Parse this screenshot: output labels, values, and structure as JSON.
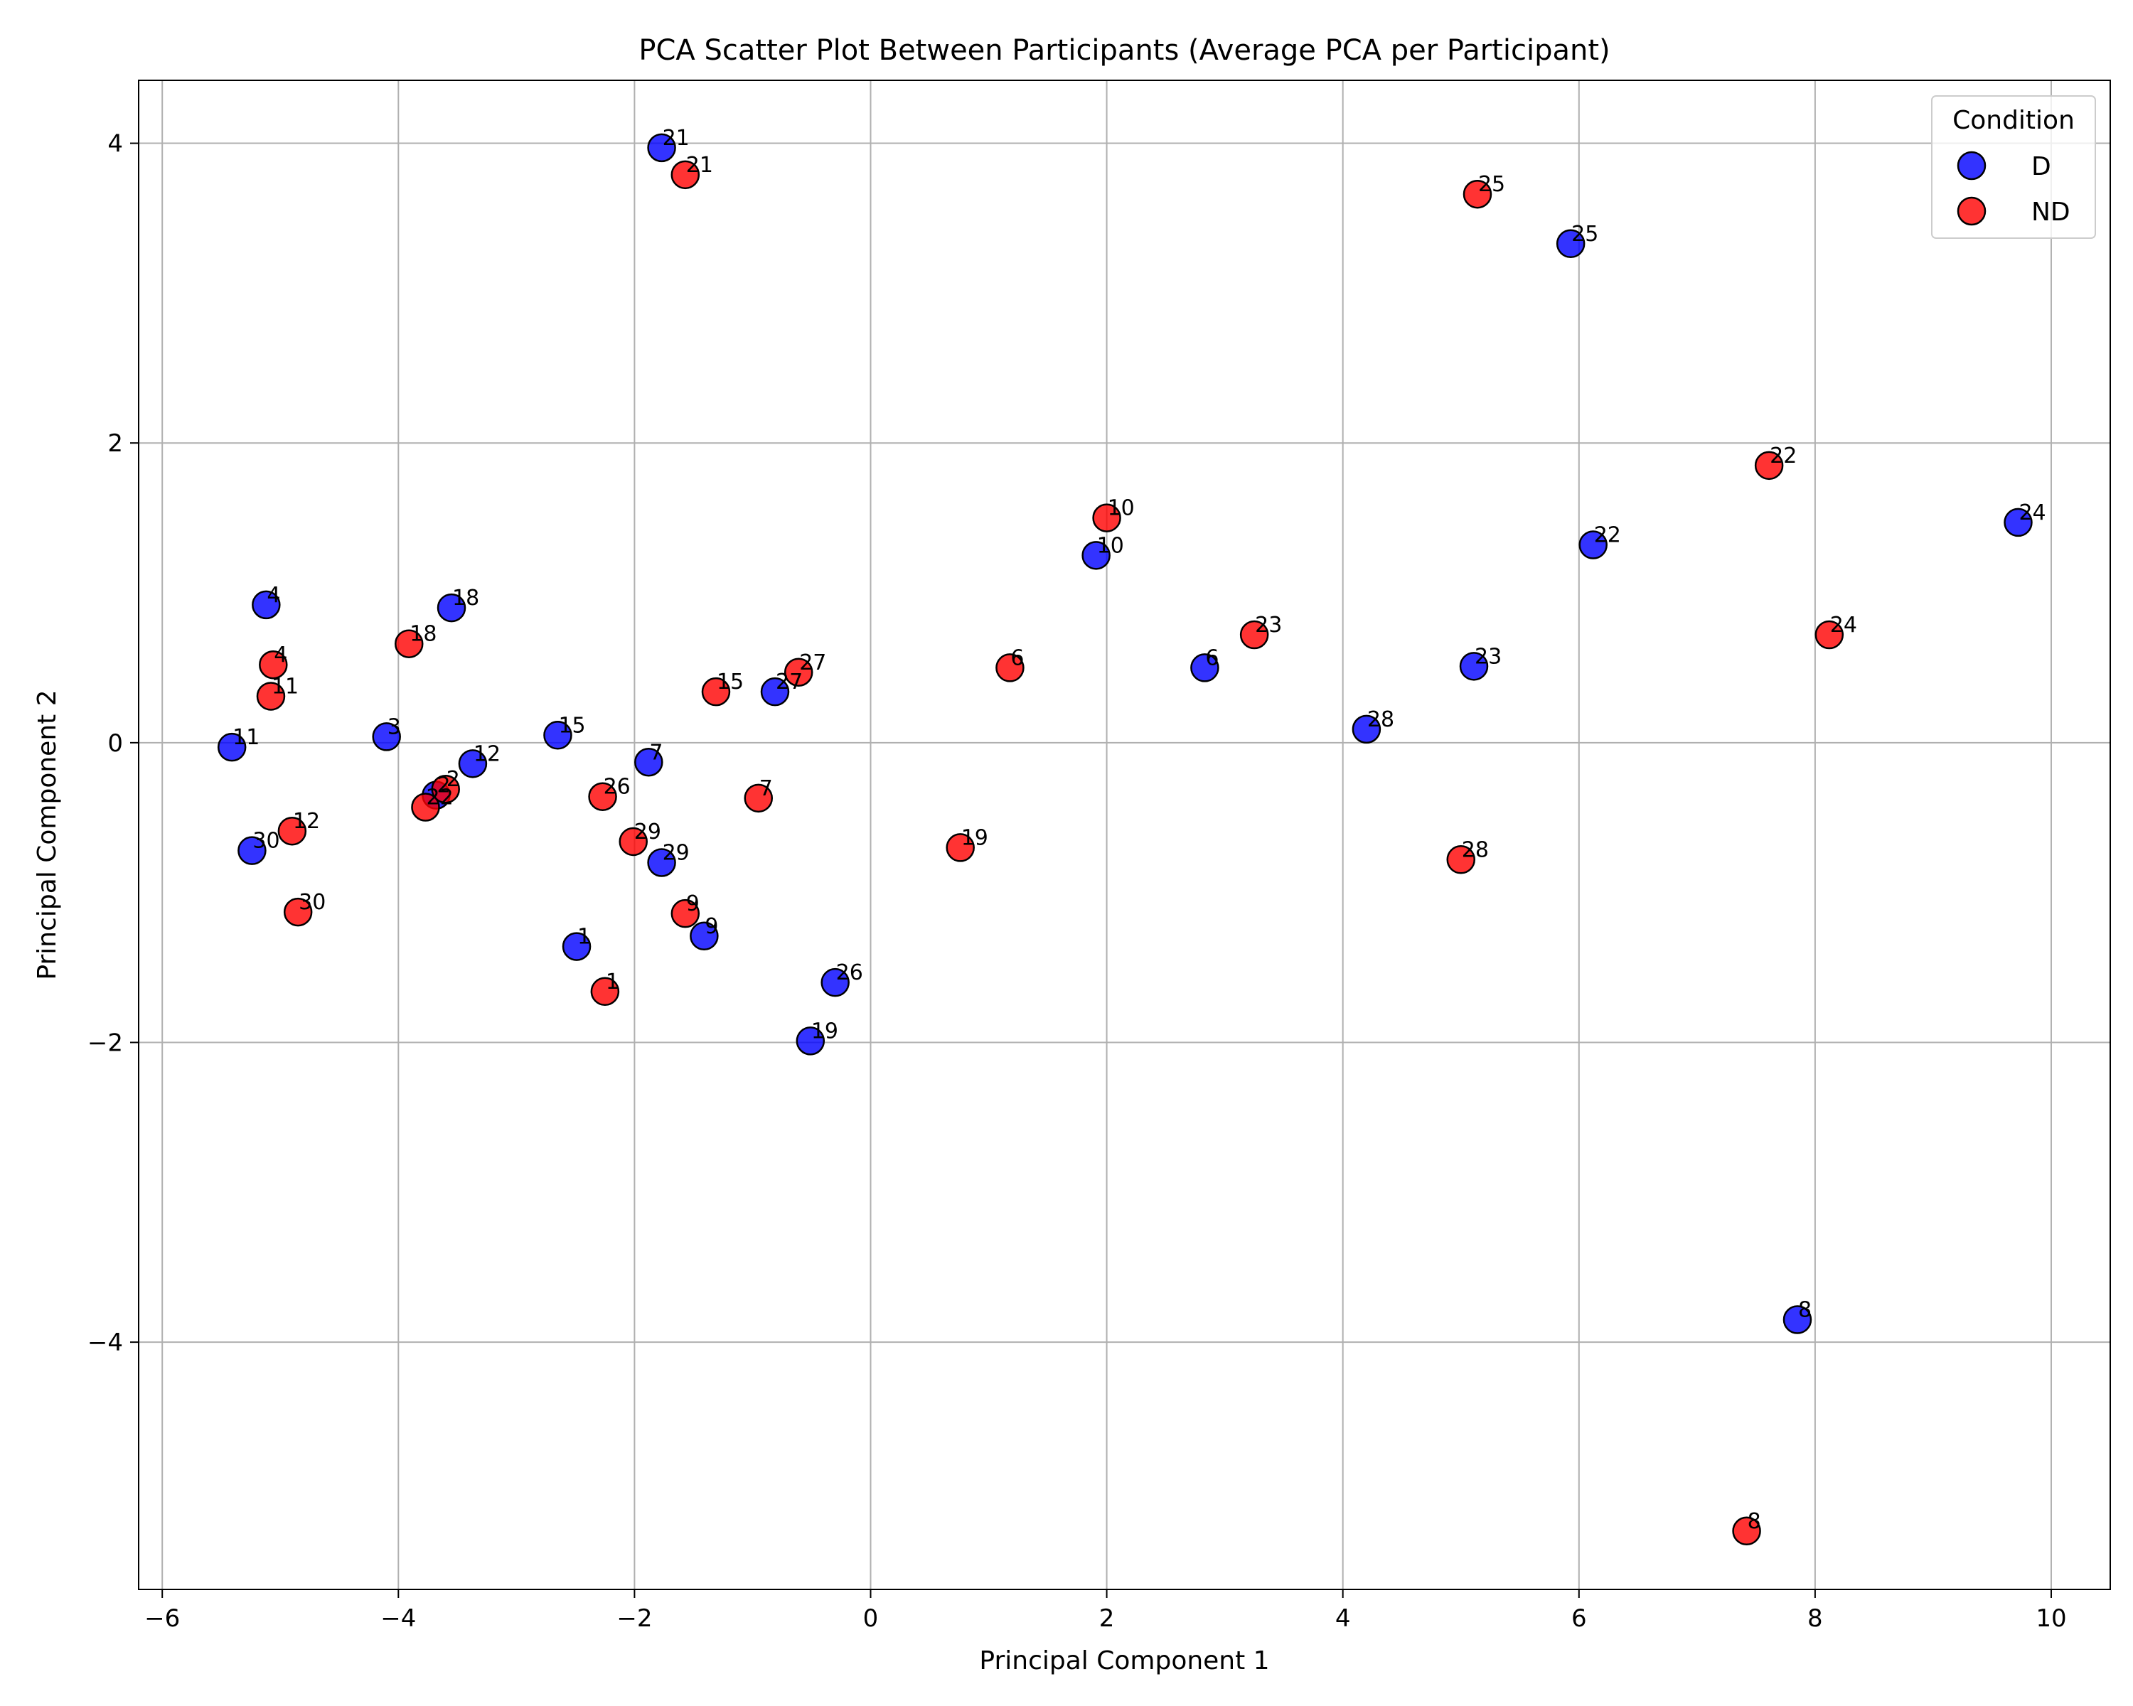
{
  "chart_data": {
    "type": "scatter",
    "title": "PCA Scatter Plot Between Participants (Average PCA per Participant)",
    "xlabel": "Principal Component 1",
    "ylabel": "Principal Component 2",
    "xlim": [
      -6.2,
      10.5
    ],
    "ylim": [
      -5.65,
      4.42
    ],
    "xticks": [
      -6,
      -4,
      -2,
      0,
      2,
      4,
      6,
      8,
      10
    ],
    "xtick_labels": [
      "−6",
      "−4",
      "−2",
      "0",
      "2",
      "4",
      "6",
      "8",
      "10"
    ],
    "yticks": [
      -4,
      -2,
      0,
      2,
      4
    ],
    "ytick_labels": [
      "−4",
      "−2",
      "0",
      "2",
      "4"
    ],
    "grid": true,
    "legend": {
      "title": "Condition",
      "placement": "top-right"
    },
    "series": [
      {
        "name": "D",
        "color": "#0000ff",
        "points": [
          {
            "label": "21",
            "x": -1.77,
            "y": 3.97
          },
          {
            "label": "25",
            "x": 5.93,
            "y": 3.33
          },
          {
            "label": "24",
            "x": 9.72,
            "y": 1.47
          },
          {
            "label": "22",
            "x": 6.12,
            "y": 1.32
          },
          {
            "label": "10",
            "x": 1.91,
            "y": 1.25
          },
          {
            "label": "4",
            "x": -5.12,
            "y": 0.92
          },
          {
            "label": "18",
            "x": -3.55,
            "y": 0.9
          },
          {
            "label": "6",
            "x": 2.83,
            "y": 0.5
          },
          {
            "label": "23",
            "x": 5.11,
            "y": 0.51
          },
          {
            "label": "27",
            "x": -0.81,
            "y": 0.34
          },
          {
            "label": "28",
            "x": 4.2,
            "y": 0.09
          },
          {
            "label": "3",
            "x": -4.1,
            "y": 0.04
          },
          {
            "label": "15",
            "x": -2.65,
            "y": 0.05
          },
          {
            "label": "11",
            "x": -5.41,
            "y": -0.03
          },
          {
            "label": "7",
            "x": -1.88,
            "y": -0.13
          },
          {
            "label": "12",
            "x": -3.37,
            "y": -0.14
          },
          {
            "label": "2",
            "x": -3.68,
            "y": -0.35
          },
          {
            "label": "30",
            "x": -5.24,
            "y": -0.72
          },
          {
            "label": "29",
            "x": -1.77,
            "y": -0.8
          },
          {
            "label": "9",
            "x": -1.41,
            "y": -1.29
          },
          {
            "label": "1",
            "x": -2.49,
            "y": -1.36
          },
          {
            "label": "26",
            "x": -0.3,
            "y": -1.6
          },
          {
            "label": "19",
            "x": -0.51,
            "y": -1.99
          },
          {
            "label": "8",
            "x": 7.85,
            "y": -3.85
          }
        ]
      },
      {
        "name": "ND",
        "color": "#ff0000",
        "points": [
          {
            "label": "21",
            "x": -1.57,
            "y": 3.79
          },
          {
            "label": "25",
            "x": 5.14,
            "y": 3.66
          },
          {
            "label": "22",
            "x": 7.61,
            "y": 1.85
          },
          {
            "label": "10",
            "x": 2.0,
            "y": 1.5
          },
          {
            "label": "24",
            "x": 8.12,
            "y": 0.72
          },
          {
            "label": "23",
            "x": 3.25,
            "y": 0.72
          },
          {
            "label": "18",
            "x": -3.91,
            "y": 0.66
          },
          {
            "label": "4",
            "x": -5.06,
            "y": 0.52
          },
          {
            "label": "6",
            "x": 1.18,
            "y": 0.5
          },
          {
            "label": "27",
            "x": -0.61,
            "y": 0.47
          },
          {
            "label": "15",
            "x": -1.31,
            "y": 0.34
          },
          {
            "label": "11",
            "x": -5.08,
            "y": 0.31
          },
          {
            "label": "2",
            "x": -3.6,
            "y": -0.31
          },
          {
            "label": "26",
            "x": -2.27,
            "y": -0.36
          },
          {
            "label": "7",
            "x": -0.95,
            "y": -0.37
          },
          {
            "label": "22",
            "x": -3.77,
            "y": -0.43
          },
          {
            "label": "12",
            "x": -4.9,
            "y": -0.59
          },
          {
            "label": "29",
            "x": -2.01,
            "y": -0.66
          },
          {
            "label": "28",
            "x": 5.0,
            "y": -0.78
          },
          {
            "label": "19",
            "x": 0.76,
            "y": -0.7
          },
          {
            "label": "9",
            "x": -1.57,
            "y": -1.14
          },
          {
            "label": "30",
            "x": -4.85,
            "y": -1.13
          },
          {
            "label": "1",
            "x": -2.25,
            "y": -1.66
          },
          {
            "label": "8",
            "x": 7.42,
            "y": -5.26
          }
        ]
      }
    ]
  }
}
